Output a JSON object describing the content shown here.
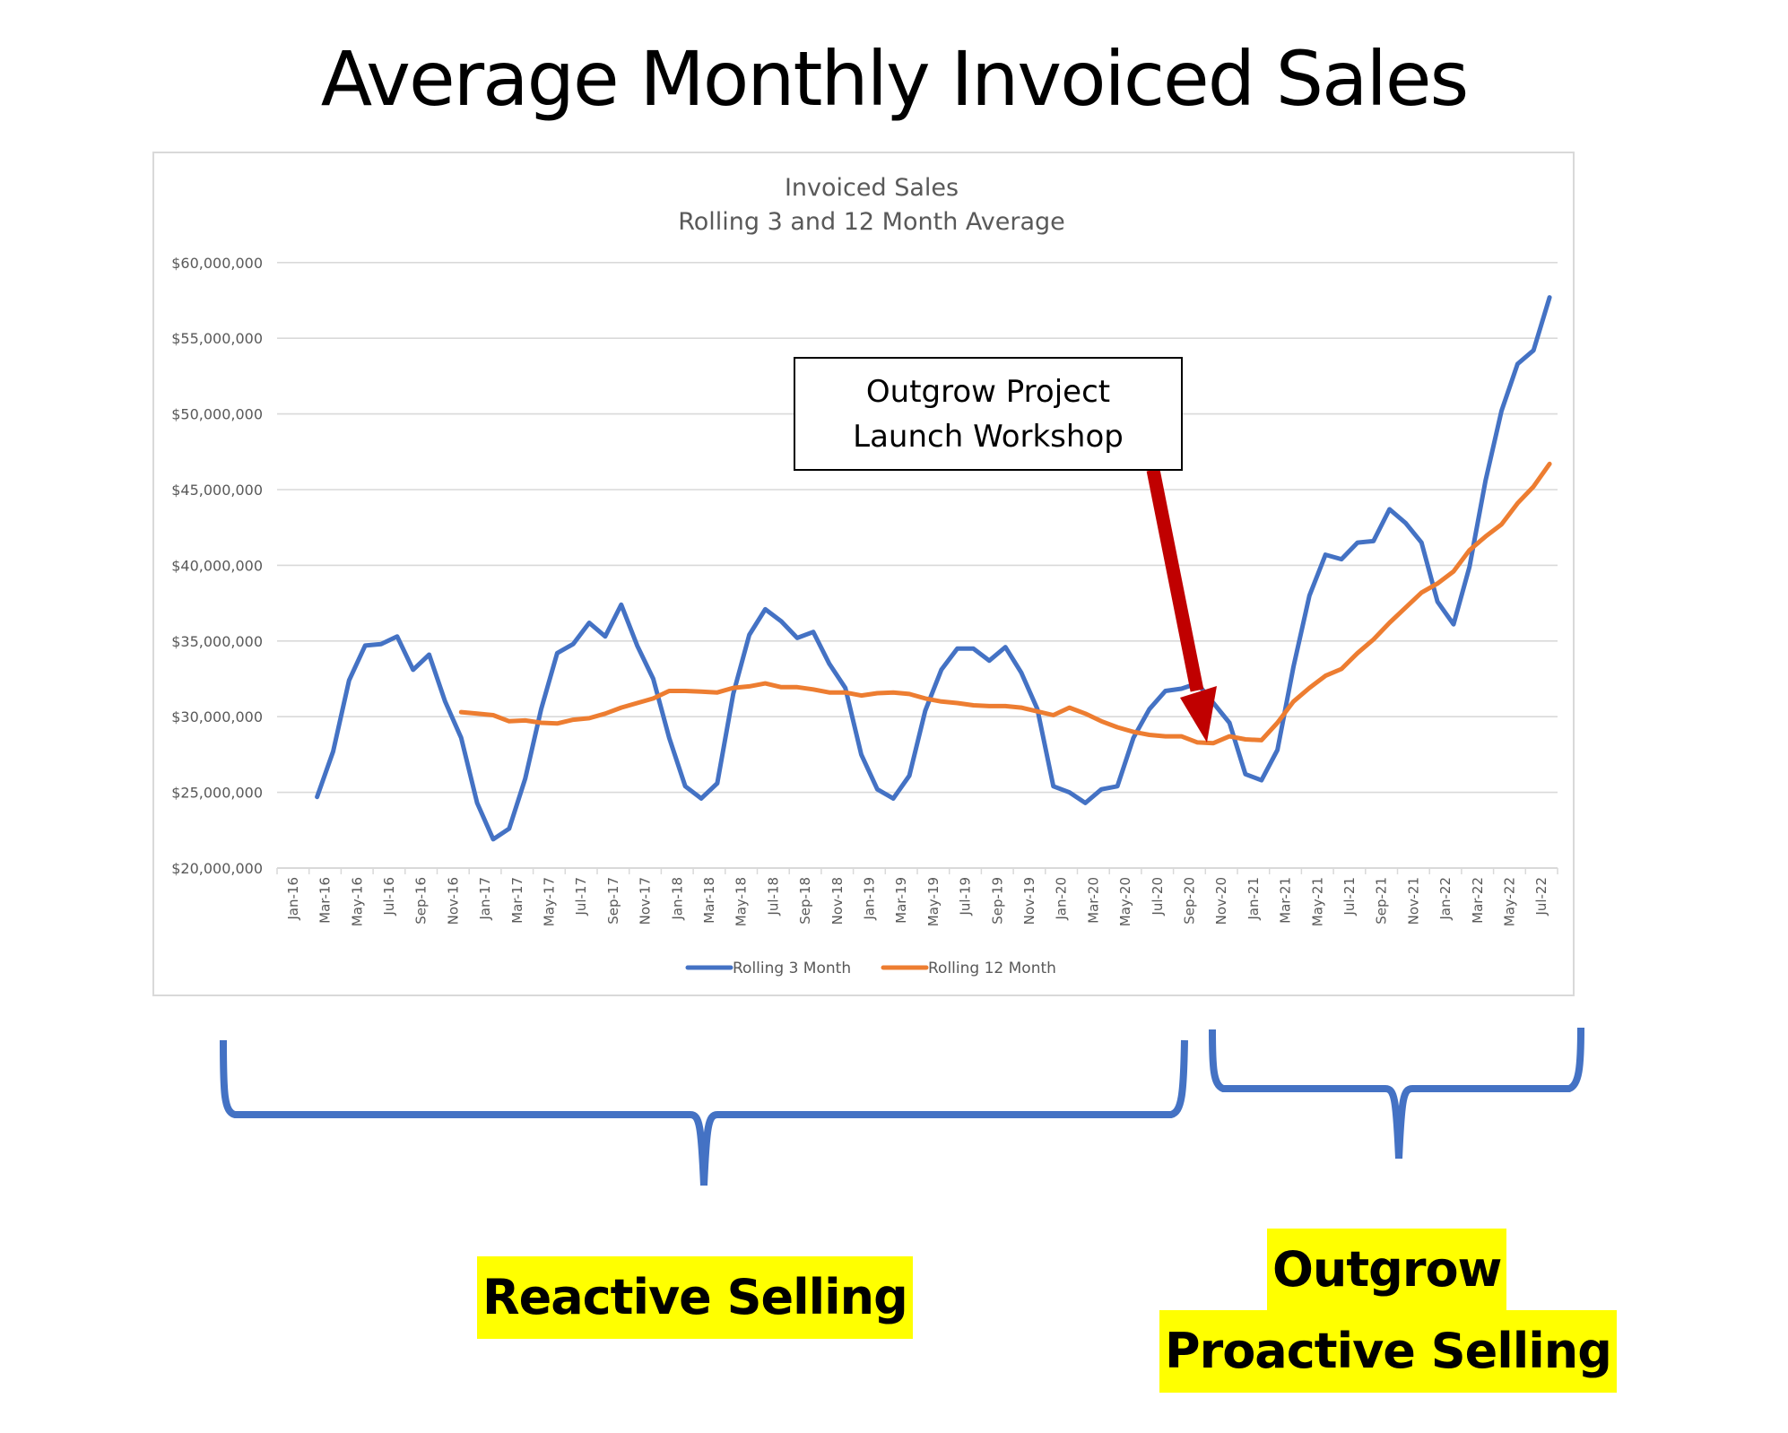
{
  "page": {
    "title": "Average Monthly Invoiced Sales"
  },
  "annotation": {
    "line1": "Outgrow Project",
    "line2": "Launch Workshop",
    "arrow_color": "#c00000"
  },
  "brackets": {
    "color": "#4472c4"
  },
  "labels": {
    "reactive": "Reactive Selling",
    "outgrow": "Outgrow",
    "proactive": "Proactive Selling",
    "highlight_color": "#ffff00"
  },
  "chart_data": {
    "type": "line",
    "title": "Invoiced Sales",
    "subtitle": "Rolling 3 and 12 Month Average",
    "xlabel": "",
    "ylabel": "",
    "ylim": [
      20000000,
      60000000
    ],
    "yticks": [
      "$20,000,000",
      "$25,000,000",
      "$30,000,000",
      "$35,000,000",
      "$40,000,000",
      "$45,000,000",
      "$50,000,000",
      "$55,000,000",
      "$60,000,000"
    ],
    "grid": true,
    "legend_position": "bottom",
    "x": [
      "Jan-16",
      "Feb-16",
      "Mar-16",
      "Apr-16",
      "May-16",
      "Jun-16",
      "Jul-16",
      "Aug-16",
      "Sep-16",
      "Oct-16",
      "Nov-16",
      "Dec-16",
      "Jan-17",
      "Feb-17",
      "Mar-17",
      "Apr-17",
      "May-17",
      "Jun-17",
      "Jul-17",
      "Aug-17",
      "Sep-17",
      "Oct-17",
      "Nov-17",
      "Dec-17",
      "Jan-18",
      "Feb-18",
      "Mar-18",
      "Apr-18",
      "May-18",
      "Jun-18",
      "Jul-18",
      "Aug-18",
      "Sep-18",
      "Oct-18",
      "Nov-18",
      "Dec-18",
      "Jan-19",
      "Feb-19",
      "Mar-19",
      "Apr-19",
      "May-19",
      "Jun-19",
      "Jul-19",
      "Aug-19",
      "Sep-19",
      "Oct-19",
      "Nov-19",
      "Dec-19",
      "Jan-20",
      "Feb-20",
      "Mar-20",
      "Apr-20",
      "May-20",
      "Jun-20",
      "Jul-20",
      "Aug-20",
      "Sep-20",
      "Oct-20",
      "Nov-20",
      "Dec-20",
      "Jan-21",
      "Feb-21",
      "Mar-21",
      "Apr-21",
      "May-21",
      "Jun-21",
      "Jul-21",
      "Aug-21",
      "Sep-21",
      "Oct-21",
      "Nov-21",
      "Dec-21",
      "Jan-22",
      "Feb-22",
      "Mar-22",
      "Apr-22",
      "May-22",
      "Jun-22",
      "Jul-22",
      "Aug-22"
    ],
    "series": [
      {
        "name": "Rolling 3 Month",
        "color": "#4472c4",
        "values": [
          null,
          null,
          24700000,
          27700000,
          32400000,
          34700000,
          34800000,
          35300000,
          33100000,
          34100000,
          31000000,
          28600000,
          24300000,
          21900000,
          22600000,
          25900000,
          30500000,
          34200000,
          34800000,
          36200000,
          35300000,
          37400000,
          34700000,
          32500000,
          28600000,
          25400000,
          24600000,
          25600000,
          31500000,
          35400000,
          37100000,
          36300000,
          35200000,
          35600000,
          33500000,
          31900000,
          27500000,
          25200000,
          24600000,
          26100000,
          30400000,
          33100000,
          34500000,
          34500000,
          33700000,
          34600000,
          32900000,
          30500000,
          25400000,
          25000000,
          24300000,
          25200000,
          25400000,
          28600000,
          30500000,
          31700000,
          31850000,
          32200000,
          30900000,
          29600000,
          26200000,
          25800000,
          27800000,
          33300000,
          38000000,
          40700000,
          40400000,
          41500000,
          41600000,
          43700000,
          42800000,
          41500000,
          37600000,
          36100000,
          39900000,
          45600000,
          50200000,
          53300000,
          54200000,
          57700000
        ]
      },
      {
        "name": "Rolling 12 Month",
        "color": "#ed7d31",
        "values": [
          null,
          null,
          null,
          null,
          null,
          null,
          null,
          null,
          null,
          null,
          null,
          30300000,
          30200000,
          30100000,
          29700000,
          29750000,
          29600000,
          29550000,
          29800000,
          29900000,
          30200000,
          30600000,
          30900000,
          31200000,
          31700000,
          31700000,
          31650000,
          31600000,
          31900000,
          32000000,
          32200000,
          31950000,
          31950000,
          31800000,
          31600000,
          31600000,
          31400000,
          31550000,
          31600000,
          31500000,
          31200000,
          31000000,
          30900000,
          30750000,
          30700000,
          30700000,
          30600000,
          30350000,
          30100000,
          30600000,
          30200000,
          29700000,
          29300000,
          29000000,
          28800000,
          28700000,
          28700000,
          28300000,
          28250000,
          28700000,
          28500000,
          28450000,
          29600000,
          31000000,
          31900000,
          32700000,
          33150000,
          34200000,
          35100000,
          36200000,
          37200000,
          38200000,
          38800000,
          39600000,
          41000000,
          41900000,
          42700000,
          44100000,
          45200000,
          46700000
        ]
      }
    ]
  }
}
